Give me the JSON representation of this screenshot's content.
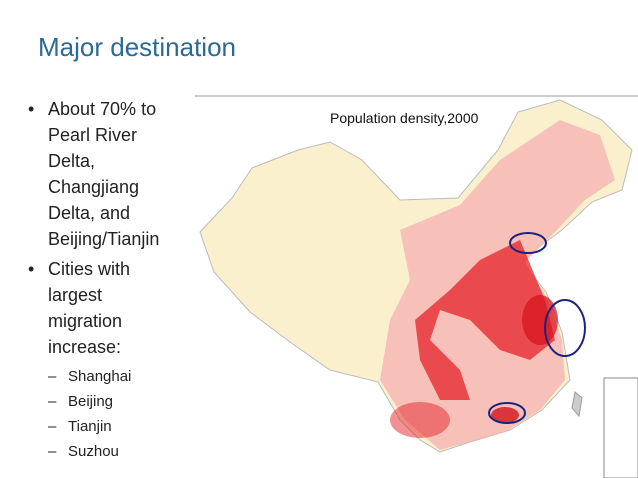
{
  "title": "Major destination",
  "bullets": [
    {
      "text": "About 70% to Pearl River Delta, Changjiang Delta, and Beijing/Tianjin"
    },
    {
      "text": "Cities with largest migration increase:",
      "subitems": [
        "Shanghai",
        "Beijing",
        "Tianjin",
        "Suzhou"
      ]
    }
  ],
  "map": {
    "caption": "Population density,2000"
  }
}
